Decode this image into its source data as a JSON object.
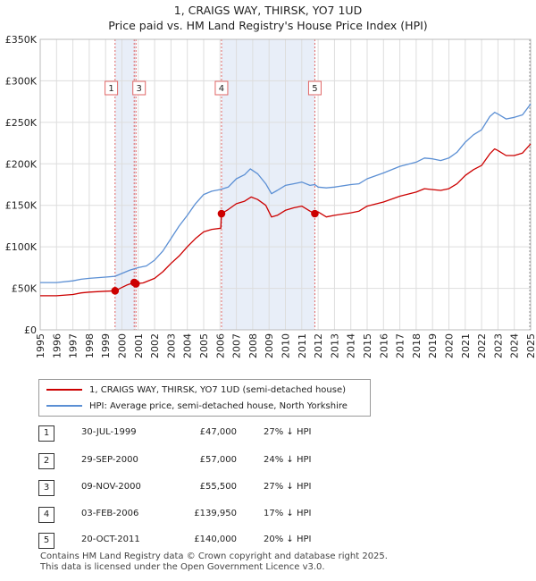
{
  "chart_data": {
    "type": "line",
    "title": "1, CRAIGS WAY, THIRSK, YO7 1UD",
    "subtitle": "Price paid vs. HM Land Registry's House Price Index (HPI)",
    "xlim": [
      1995,
      2025
    ],
    "ylim": [
      0,
      350000
    ],
    "x_ticks": [
      "1995",
      "1996",
      "1997",
      "1998",
      "1999",
      "2000",
      "2001",
      "2002",
      "2003",
      "2004",
      "2005",
      "2006",
      "2007",
      "2008",
      "2009",
      "2010",
      "2011",
      "2012",
      "2013",
      "2014",
      "2015",
      "2016",
      "2017",
      "2018",
      "2019",
      "2020",
      "2021",
      "2022",
      "2023",
      "2024",
      "2025"
    ],
    "y_ticks": [
      {
        "value": 0,
        "label": "£0"
      },
      {
        "value": 50000,
        "label": "£50K"
      },
      {
        "value": 100000,
        "label": "£100K"
      },
      {
        "value": 150000,
        "label": "£150K"
      },
      {
        "value": 200000,
        "label": "£200K"
      },
      {
        "value": 250000,
        "label": "£250K"
      },
      {
        "value": 300000,
        "label": "£300K"
      },
      {
        "value": 350000,
        "label": "£350K"
      }
    ],
    "grid": true,
    "colors": {
      "red": "#cc0000",
      "blue": "#5b8fd4",
      "shade": "#e8eef8",
      "grid": "#dddddd",
      "vline": "#e06666"
    },
    "series": [
      {
        "name": "1, CRAIGS WAY, THIRSK, YO7 1UD (semi-detached house)",
        "color": "#cc0000",
        "points": [
          [
            1995.0,
            41000
          ],
          [
            1996.0,
            41000
          ],
          [
            1997.0,
            42500
          ],
          [
            1997.5,
            44500
          ],
          [
            1998.0,
            45500
          ],
          [
            1999.0,
            46500
          ],
          [
            1999.58,
            47000
          ],
          [
            2000.0,
            51000
          ],
          [
            2000.3,
            54000
          ],
          [
            2000.75,
            57000
          ],
          [
            2000.86,
            55500
          ],
          [
            2001.3,
            56500
          ],
          [
            2002.0,
            62000
          ],
          [
            2002.5,
            70000
          ],
          [
            2003.0,
            80000
          ],
          [
            2003.5,
            89000
          ],
          [
            2004.0,
            100000
          ],
          [
            2004.5,
            110000
          ],
          [
            2005.0,
            118000
          ],
          [
            2005.5,
            121000
          ],
          [
            2006.05,
            122500
          ],
          [
            2006.09,
            139950
          ],
          [
            2006.5,
            145000
          ],
          [
            2007.0,
            152000
          ],
          [
            2007.5,
            155000
          ],
          [
            2007.9,
            160000
          ],
          [
            2008.3,
            157000
          ],
          [
            2008.8,
            150000
          ],
          [
            2009.15,
            136000
          ],
          [
            2009.5,
            138000
          ],
          [
            2010.0,
            144000
          ],
          [
            2010.5,
            147000
          ],
          [
            2011.0,
            149000
          ],
          [
            2011.5,
            143000
          ],
          [
            2011.8,
            140000
          ],
          [
            2012.0,
            142000
          ],
          [
            2012.5,
            136000
          ],
          [
            2013.0,
            138000
          ],
          [
            2014.0,
            141000
          ],
          [
            2014.5,
            143000
          ],
          [
            2015.0,
            149000
          ],
          [
            2016.0,
            154000
          ],
          [
            2017.0,
            161000
          ],
          [
            2018.0,
            166000
          ],
          [
            2018.5,
            170000
          ],
          [
            2019.0,
            169000
          ],
          [
            2019.5,
            168000
          ],
          [
            2020.0,
            170000
          ],
          [
            2020.5,
            176000
          ],
          [
            2021.0,
            186000
          ],
          [
            2021.5,
            193000
          ],
          [
            2022.0,
            198000
          ],
          [
            2022.5,
            212000
          ],
          [
            2022.8,
            218000
          ],
          [
            2023.0,
            216000
          ],
          [
            2023.5,
            210000
          ],
          [
            2024.0,
            210000
          ],
          [
            2024.5,
            213000
          ],
          [
            2025.0,
            224000
          ]
        ]
      },
      {
        "name": "HPI: Average price, semi-detached house, North Yorkshire",
        "color": "#5b8fd4",
        "points": [
          [
            1995.0,
            57000
          ],
          [
            1996.0,
            57000
          ],
          [
            1997.0,
            59000
          ],
          [
            1997.5,
            61000
          ],
          [
            1998.0,
            62000
          ],
          [
            1999.0,
            63500
          ],
          [
            1999.58,
            64500
          ],
          [
            2000.0,
            68000
          ],
          [
            2000.5,
            72000
          ],
          [
            2001.0,
            75000
          ],
          [
            2001.5,
            77000
          ],
          [
            2002.0,
            84000
          ],
          [
            2002.5,
            95000
          ],
          [
            2003.0,
            110000
          ],
          [
            2003.5,
            125000
          ],
          [
            2004.0,
            138000
          ],
          [
            2004.5,
            152000
          ],
          [
            2005.0,
            163000
          ],
          [
            2005.5,
            167000
          ],
          [
            2006.0,
            169000
          ],
          [
            2006.5,
            172000
          ],
          [
            2007.0,
            182000
          ],
          [
            2007.5,
            187000
          ],
          [
            2007.85,
            194000
          ],
          [
            2008.3,
            188000
          ],
          [
            2008.8,
            176000
          ],
          [
            2009.15,
            164000
          ],
          [
            2009.5,
            168000
          ],
          [
            2010.0,
            174000
          ],
          [
            2010.5,
            176000
          ],
          [
            2011.0,
            178000
          ],
          [
            2011.5,
            174000
          ],
          [
            2011.8,
            175000
          ],
          [
            2012.0,
            172000
          ],
          [
            2012.5,
            171000
          ],
          [
            2013.0,
            172000
          ],
          [
            2014.0,
            175000
          ],
          [
            2014.5,
            176000
          ],
          [
            2015.0,
            182000
          ],
          [
            2016.0,
            189000
          ],
          [
            2017.0,
            197000
          ],
          [
            2018.0,
            202000
          ],
          [
            2018.5,
            207000
          ],
          [
            2019.0,
            206000
          ],
          [
            2019.5,
            204000
          ],
          [
            2020.0,
            207000
          ],
          [
            2020.5,
            214000
          ],
          [
            2021.0,
            226000
          ],
          [
            2021.5,
            235000
          ],
          [
            2022.0,
            241000
          ],
          [
            2022.5,
            257000
          ],
          [
            2022.8,
            262000
          ],
          [
            2023.0,
            260000
          ],
          [
            2023.5,
            254000
          ],
          [
            2024.0,
            256000
          ],
          [
            2024.5,
            259000
          ],
          [
            2025.0,
            272000
          ]
        ]
      }
    ],
    "sales": [
      {
        "num": "1",
        "x": 1999.58,
        "y": 47000,
        "date": "30-JUL-1999",
        "price": "£47,000",
        "hpi": "27% ↓ HPI"
      },
      {
        "num": "2",
        "x": 2000.75,
        "y": 57000,
        "date": "29-SEP-2000",
        "price": "£57,000",
        "hpi": "24% ↓ HPI"
      },
      {
        "num": "3",
        "x": 2000.86,
        "y": 55500,
        "date": "09-NOV-2000",
        "price": "£55,500",
        "hpi": "27% ↓ HPI"
      },
      {
        "num": "4",
        "x": 2006.09,
        "y": 139950,
        "date": "03-FEB-2006",
        "price": "£139,950",
        "hpi": "17% ↓ HPI"
      },
      {
        "num": "5",
        "x": 2011.8,
        "y": 140000,
        "date": "20-OCT-2011",
        "price": "£140,000",
        "hpi": "20% ↓ HPI"
      }
    ],
    "marker_boxes": [
      {
        "num": "1",
        "x": 1999.35
      },
      {
        "num": "3",
        "x": 2001.05
      },
      {
        "num": "4",
        "x": 2006.09
      },
      {
        "num": "5",
        "x": 2011.8
      }
    ],
    "shade_ranges": [
      [
        1999.58,
        2000.86
      ],
      [
        2006.09,
        2011.8
      ]
    ]
  },
  "legend": {
    "red_label": "1, CRAIGS WAY, THIRSK, YO7 1UD (semi-detached house)",
    "blue_label": "HPI: Average price, semi-detached house, North Yorkshire"
  },
  "footer": {
    "line1": "Contains HM Land Registry data © Crown copyright and database right 2025.",
    "line2": "This data is licensed under the Open Government Licence v3.0."
  }
}
